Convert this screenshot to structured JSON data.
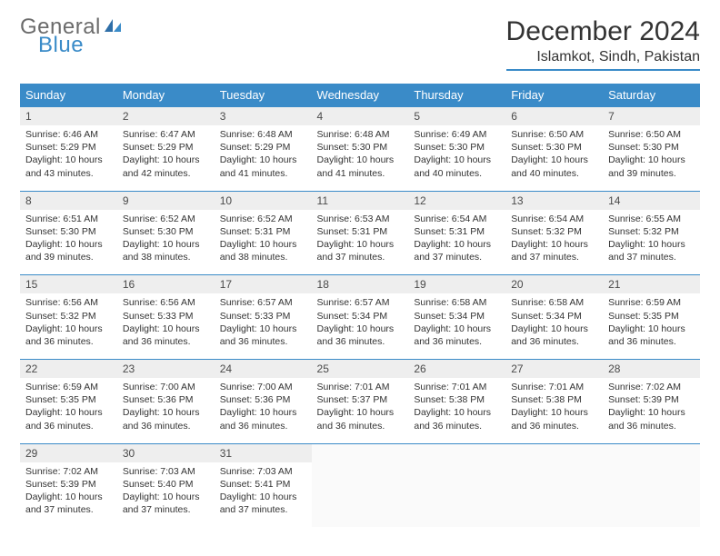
{
  "logo": {
    "text1": "General",
    "text2": "Blue"
  },
  "title": "December 2024",
  "location": "Islamkot, Sindh, Pakistan",
  "colors": {
    "accent": "#3a8bc8",
    "header_text": "#ffffff",
    "daynum_bg": "#eeeeee",
    "body_bg": "#ffffff",
    "text": "#333333",
    "logo_gray": "#6b6b6b"
  },
  "typography": {
    "title_fontsize": 30,
    "location_fontsize": 16,
    "dow_fontsize": 13,
    "daynum_fontsize": 12,
    "detail_fontsize": 10.5
  },
  "layout": {
    "columns": 7,
    "weeks": 5
  },
  "dow": [
    "Sunday",
    "Monday",
    "Tuesday",
    "Wednesday",
    "Thursday",
    "Friday",
    "Saturday"
  ],
  "days": [
    {
      "n": 1,
      "sr": "6:46 AM",
      "ss": "5:29 PM",
      "dl": "10 hours and 43 minutes."
    },
    {
      "n": 2,
      "sr": "6:47 AM",
      "ss": "5:29 PM",
      "dl": "10 hours and 42 minutes."
    },
    {
      "n": 3,
      "sr": "6:48 AM",
      "ss": "5:29 PM",
      "dl": "10 hours and 41 minutes."
    },
    {
      "n": 4,
      "sr": "6:48 AM",
      "ss": "5:30 PM",
      "dl": "10 hours and 41 minutes."
    },
    {
      "n": 5,
      "sr": "6:49 AM",
      "ss": "5:30 PM",
      "dl": "10 hours and 40 minutes."
    },
    {
      "n": 6,
      "sr": "6:50 AM",
      "ss": "5:30 PM",
      "dl": "10 hours and 40 minutes."
    },
    {
      "n": 7,
      "sr": "6:50 AM",
      "ss": "5:30 PM",
      "dl": "10 hours and 39 minutes."
    },
    {
      "n": 8,
      "sr": "6:51 AM",
      "ss": "5:30 PM",
      "dl": "10 hours and 39 minutes."
    },
    {
      "n": 9,
      "sr": "6:52 AM",
      "ss": "5:30 PM",
      "dl": "10 hours and 38 minutes."
    },
    {
      "n": 10,
      "sr": "6:52 AM",
      "ss": "5:31 PM",
      "dl": "10 hours and 38 minutes."
    },
    {
      "n": 11,
      "sr": "6:53 AM",
      "ss": "5:31 PM",
      "dl": "10 hours and 37 minutes."
    },
    {
      "n": 12,
      "sr": "6:54 AM",
      "ss": "5:31 PM",
      "dl": "10 hours and 37 minutes."
    },
    {
      "n": 13,
      "sr": "6:54 AM",
      "ss": "5:32 PM",
      "dl": "10 hours and 37 minutes."
    },
    {
      "n": 14,
      "sr": "6:55 AM",
      "ss": "5:32 PM",
      "dl": "10 hours and 37 minutes."
    },
    {
      "n": 15,
      "sr": "6:56 AM",
      "ss": "5:32 PM",
      "dl": "10 hours and 36 minutes."
    },
    {
      "n": 16,
      "sr": "6:56 AM",
      "ss": "5:33 PM",
      "dl": "10 hours and 36 minutes."
    },
    {
      "n": 17,
      "sr": "6:57 AM",
      "ss": "5:33 PM",
      "dl": "10 hours and 36 minutes."
    },
    {
      "n": 18,
      "sr": "6:57 AM",
      "ss": "5:34 PM",
      "dl": "10 hours and 36 minutes."
    },
    {
      "n": 19,
      "sr": "6:58 AM",
      "ss": "5:34 PM",
      "dl": "10 hours and 36 minutes."
    },
    {
      "n": 20,
      "sr": "6:58 AM",
      "ss": "5:34 PM",
      "dl": "10 hours and 36 minutes."
    },
    {
      "n": 21,
      "sr": "6:59 AM",
      "ss": "5:35 PM",
      "dl": "10 hours and 36 minutes."
    },
    {
      "n": 22,
      "sr": "6:59 AM",
      "ss": "5:35 PM",
      "dl": "10 hours and 36 minutes."
    },
    {
      "n": 23,
      "sr": "7:00 AM",
      "ss": "5:36 PM",
      "dl": "10 hours and 36 minutes."
    },
    {
      "n": 24,
      "sr": "7:00 AM",
      "ss": "5:36 PM",
      "dl": "10 hours and 36 minutes."
    },
    {
      "n": 25,
      "sr": "7:01 AM",
      "ss": "5:37 PM",
      "dl": "10 hours and 36 minutes."
    },
    {
      "n": 26,
      "sr": "7:01 AM",
      "ss": "5:38 PM",
      "dl": "10 hours and 36 minutes."
    },
    {
      "n": 27,
      "sr": "7:01 AM",
      "ss": "5:38 PM",
      "dl": "10 hours and 36 minutes."
    },
    {
      "n": 28,
      "sr": "7:02 AM",
      "ss": "5:39 PM",
      "dl": "10 hours and 36 minutes."
    },
    {
      "n": 29,
      "sr": "7:02 AM",
      "ss": "5:39 PM",
      "dl": "10 hours and 37 minutes."
    },
    {
      "n": 30,
      "sr": "7:03 AM",
      "ss": "5:40 PM",
      "dl": "10 hours and 37 minutes."
    },
    {
      "n": 31,
      "sr": "7:03 AM",
      "ss": "5:41 PM",
      "dl": "10 hours and 37 minutes."
    }
  ],
  "labels": {
    "sunrise": "Sunrise:",
    "sunset": "Sunset:",
    "daylight": "Daylight:"
  }
}
